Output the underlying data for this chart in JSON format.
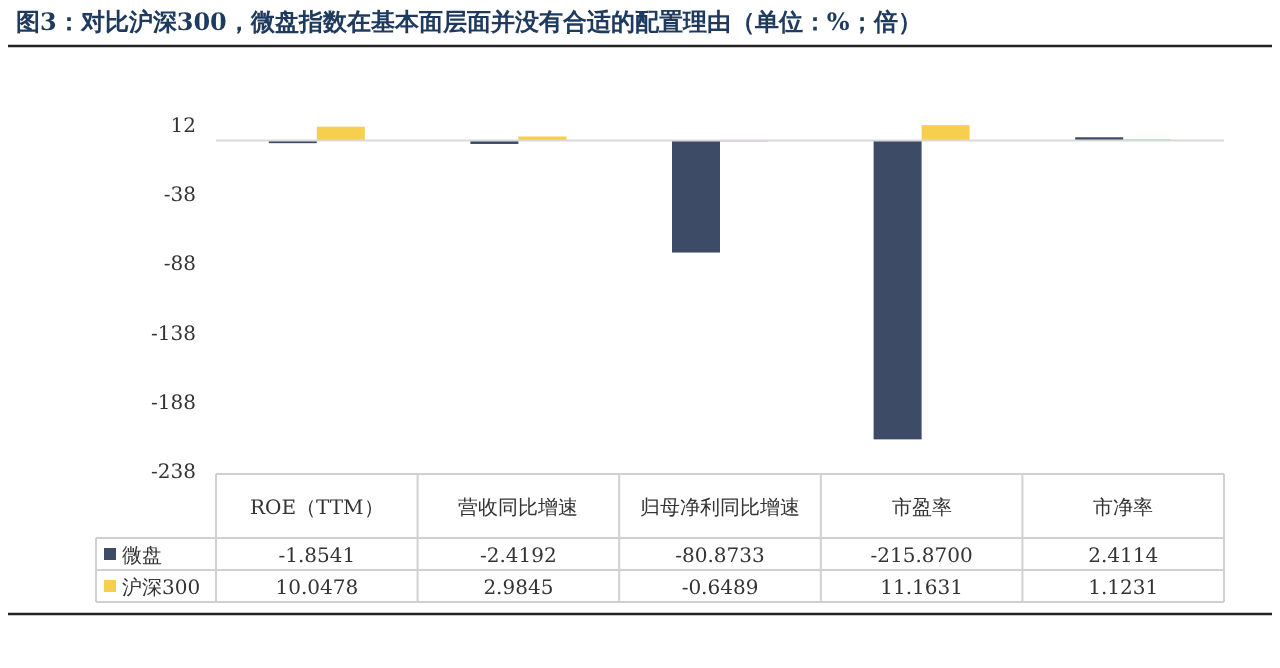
{
  "chart_data": {
    "type": "bar",
    "title": "图3：对比沪深300，微盘指数在基本面层面并没有合适的配置理由（单位：%；倍）",
    "categories": [
      "ROE（TTM）",
      "营收同比增速",
      "归母净利同比增速",
      "市盈率",
      "市净率"
    ],
    "series": [
      {
        "name": "微盘",
        "color": "#3d4b66",
        "values": [
          -1.8541,
          -2.4192,
          -80.8733,
          -215.87,
          2.4114
        ],
        "value_labels": [
          "-1.8541",
          "-2.4192",
          "-80.8733",
          "-215.8700",
          "2.4114"
        ]
      },
      {
        "name": "沪深300",
        "color": "#f7cf4e",
        "values": [
          10.0478,
          2.9845,
          -0.6489,
          11.1631,
          1.1231
        ],
        "value_labels": [
          "10.0478",
          "2.9845",
          "-0.6489",
          "11.1631",
          "1.1231"
        ]
      }
    ],
    "ylim": [
      -238,
      12
    ],
    "yticks": [
      12,
      -38,
      -88,
      -138,
      -188,
      -238
    ],
    "data_labels": true,
    "legend": "bottom"
  }
}
